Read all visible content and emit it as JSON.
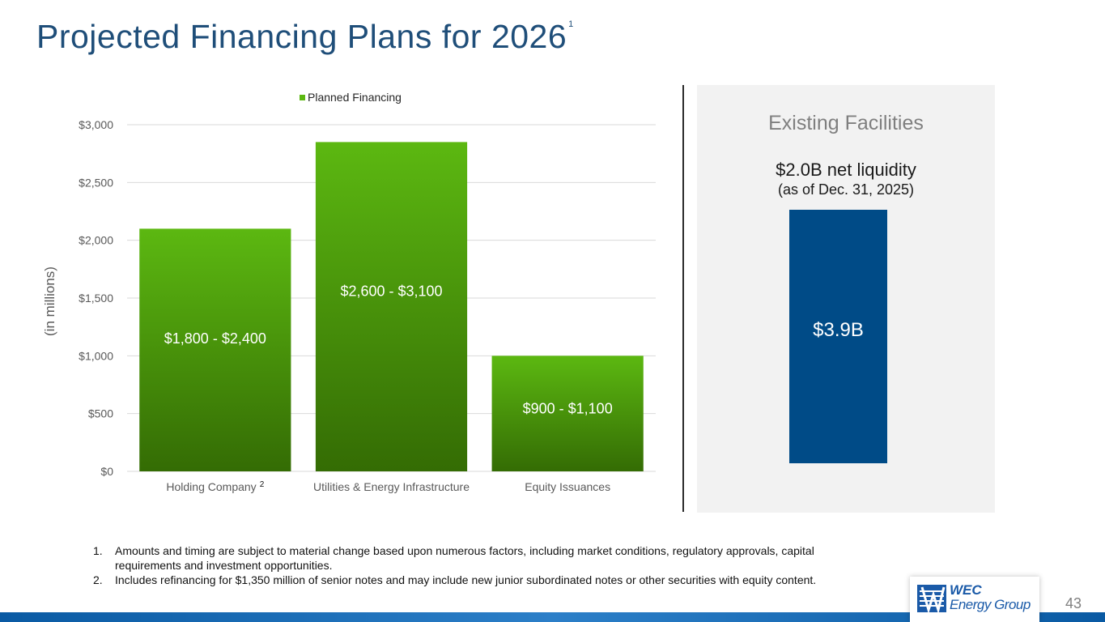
{
  "slide": {
    "title": "Projected Financing Plans for 2026",
    "title_footnote_ref": "1",
    "page_number": "43"
  },
  "chart_data": {
    "type": "bar",
    "title": "",
    "ylabel": "(in millions)",
    "xlabel": "",
    "ylim": [
      0,
      3000
    ],
    "ytick_values": [
      0,
      500,
      1000,
      1500,
      2000,
      2500,
      3000
    ],
    "ytick_labels": [
      "$0",
      "$500",
      "$1,000",
      "$1,500",
      "$2,000",
      "$2,500",
      "$3,000"
    ],
    "grid": true,
    "legend_position": "top",
    "categories": [
      "Holding Company",
      "Utilities & Energy Infrastructure",
      "Equity Issuances"
    ],
    "category_superscripts": [
      "2",
      "",
      ""
    ],
    "series": [
      {
        "name": "Planned Financing",
        "values": [
          2100,
          2850,
          1000
        ],
        "data_labels": [
          "$1,800 - $2,400",
          "$2,600 - $3,100",
          "$900 - $1,100"
        ],
        "color_top": "#5cb811",
        "color_bottom": "#346c04"
      }
    ]
  },
  "facilities": {
    "title": "Existing Facilities",
    "liquidity": "$2.0B net liquidity",
    "as_of": "(as of Dec. 31, 2025)",
    "bar_label": "$3.9B",
    "bar_color": "#004b87"
  },
  "footnotes": [
    {
      "num": "1.",
      "text": "Amounts and timing are subject to material change based upon numerous factors, including market conditions, regulatory approvals, capital requirements and investment opportunities."
    },
    {
      "num": "2.",
      "text": "Includes refinancing for $1,350 million of senior notes and may include new junior subordinated notes or other securities with equity content."
    }
  ],
  "logo": {
    "line1": "WEC",
    "line2": "Energy Group",
    "color": "#1a5aa8"
  }
}
